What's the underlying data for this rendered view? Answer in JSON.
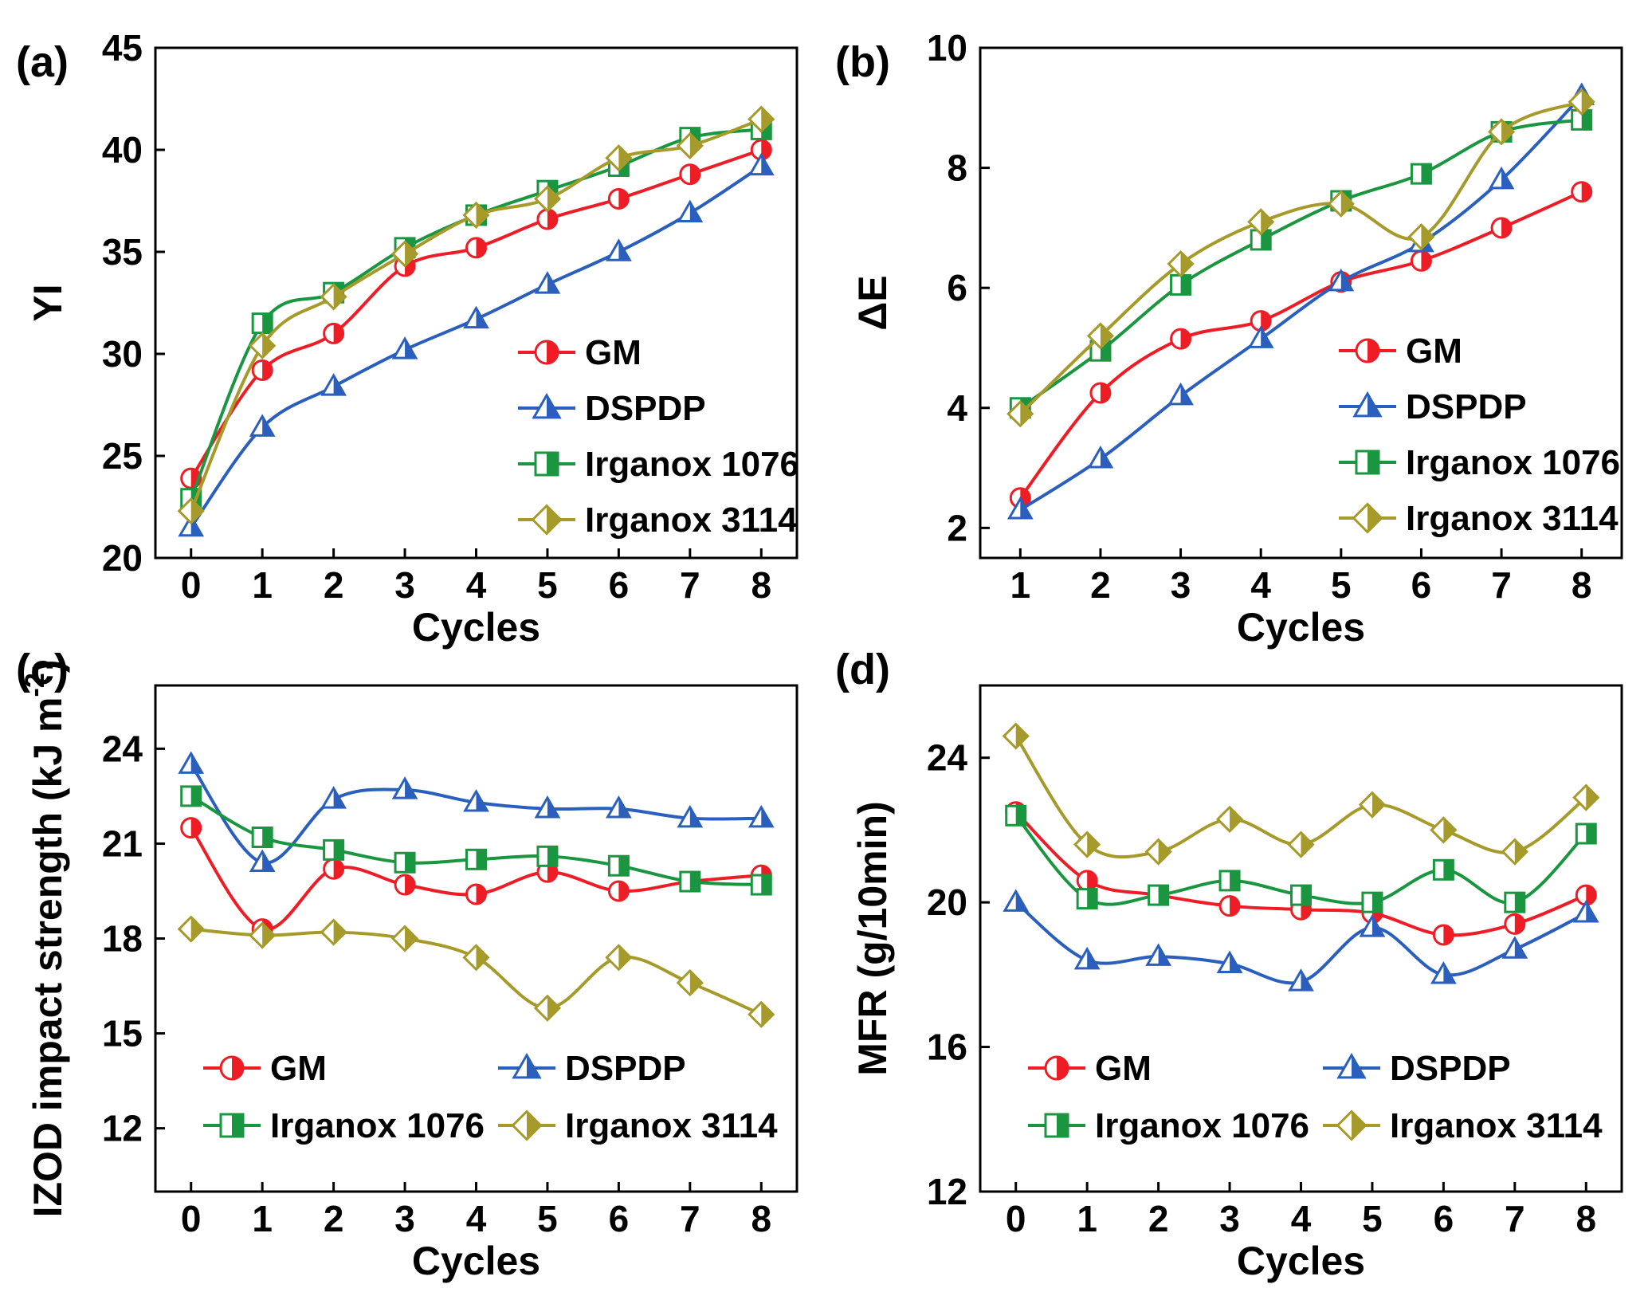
{
  "chart_data": [
    {
      "panel": "(a)",
      "type": "line",
      "xlabel": "Cycles",
      "ylabel": "YI",
      "x": [
        0,
        1,
        2,
        3,
        4,
        5,
        6,
        7,
        8
      ],
      "xlim": [
        -0.5,
        8.5
      ],
      "xticks": [
        0,
        1,
        2,
        3,
        4,
        5,
        6,
        7,
        8
      ],
      "ylim": [
        20,
        45
      ],
      "yticks": [
        20,
        25,
        30,
        35,
        40,
        45
      ],
      "legend": "lower-right",
      "series": [
        {
          "name": "GM",
          "marker": "circle",
          "color": "#ee1c25",
          "values": [
            23.9,
            29.2,
            31.0,
            34.3,
            35.2,
            36.6,
            37.6,
            38.8,
            40.0
          ]
        },
        {
          "name": "DSPDP",
          "marker": "triangle",
          "color": "#2a5fbd",
          "values": [
            21.5,
            26.4,
            28.4,
            30.2,
            31.7,
            33.4,
            35.0,
            36.9,
            39.2
          ]
        },
        {
          "name": "Irganox 1076",
          "marker": "square",
          "color": "#1a9641",
          "values": [
            22.9,
            31.5,
            33.0,
            35.2,
            36.8,
            38.0,
            39.2,
            40.6,
            41.0
          ]
        },
        {
          "name": "Irganox 3114",
          "marker": "diamond",
          "color": "#a59a2a",
          "values": [
            22.3,
            30.4,
            32.8,
            34.9,
            36.8,
            37.6,
            39.6,
            40.2,
            41.5
          ]
        }
      ]
    },
    {
      "panel": "(b)",
      "type": "line",
      "xlabel": "Cycles",
      "ylabel": "ΔE",
      "x": [
        1,
        2,
        3,
        4,
        5,
        6,
        7,
        8
      ],
      "xlim": [
        0.5,
        8.5
      ],
      "xticks": [
        1,
        2,
        3,
        4,
        5,
        6,
        7,
        8
      ],
      "ylim": [
        1.5,
        10
      ],
      "yticks": [
        2,
        4,
        6,
        8,
        10
      ],
      "legend": "lower-right",
      "series": [
        {
          "name": "GM",
          "marker": "circle",
          "color": "#ee1c25",
          "values": [
            2.5,
            4.25,
            5.15,
            5.45,
            6.1,
            6.45,
            7.0,
            7.6
          ]
        },
        {
          "name": "DSPDP",
          "marker": "triangle",
          "color": "#2a5fbd",
          "values": [
            2.3,
            3.15,
            4.2,
            5.15,
            6.1,
            6.75,
            7.8,
            9.2
          ]
        },
        {
          "name": "Irganox 1076",
          "marker": "square",
          "color": "#1a9641",
          "values": [
            4.0,
            4.95,
            6.05,
            6.8,
            7.45,
            7.9,
            8.6,
            8.8
          ]
        },
        {
          "name": "Irganox 3114",
          "marker": "diamond",
          "color": "#a59a2a",
          "values": [
            3.9,
            5.2,
            6.4,
            7.1,
            7.4,
            6.85,
            8.6,
            9.1
          ]
        }
      ]
    },
    {
      "panel": "(c)",
      "type": "line",
      "xlabel": "Cycles",
      "ylabel": "IZOD impact strength (kJ m",
      "ylabel_superscript": "-2",
      "ylabel_suffix": ")",
      "x": [
        0,
        1,
        2,
        3,
        4,
        5,
        6,
        7,
        8
      ],
      "xlim": [
        -0.5,
        8.5
      ],
      "xticks": [
        0,
        1,
        2,
        3,
        4,
        5,
        6,
        7,
        8
      ],
      "ylim": [
        10,
        26
      ],
      "yticks": [
        12,
        15,
        18,
        21,
        24
      ],
      "legend": "bottom",
      "series": [
        {
          "name": "GM",
          "marker": "circle",
          "color": "#ee1c25",
          "values": [
            21.5,
            18.3,
            20.2,
            19.7,
            19.4,
            20.1,
            19.5,
            19.8,
            20.0
          ]
        },
        {
          "name": "DSPDP",
          "marker": "triangle",
          "color": "#2a5fbd",
          "values": [
            23.5,
            20.4,
            22.4,
            22.7,
            22.3,
            22.1,
            22.1,
            21.8,
            21.8
          ]
        },
        {
          "name": "Irganox 1076",
          "marker": "square",
          "color": "#1a9641",
          "values": [
            22.5,
            21.2,
            20.8,
            20.4,
            20.5,
            20.6,
            20.3,
            19.8,
            19.7
          ]
        },
        {
          "name": "Irganox 3114",
          "marker": "diamond",
          "color": "#a59a2a",
          "values": [
            18.3,
            18.1,
            18.2,
            18.0,
            17.4,
            15.8,
            17.4,
            16.6,
            15.6
          ]
        }
      ]
    },
    {
      "panel": "(d)",
      "type": "line",
      "xlabel": "Cycles",
      "ylabel": "MFR (g/10min)",
      "x": [
        0,
        1,
        2,
        3,
        4,
        5,
        6,
        7,
        8
      ],
      "xlim": [
        -0.5,
        8.5
      ],
      "xticks": [
        0,
        1,
        2,
        3,
        4,
        5,
        6,
        7,
        8
      ],
      "ylim": [
        12,
        26
      ],
      "yticks": [
        12,
        16,
        20,
        24
      ],
      "legend": "bottom",
      "series": [
        {
          "name": "GM",
          "marker": "circle",
          "color": "#ee1c25",
          "values": [
            22.5,
            20.6,
            20.2,
            19.9,
            19.8,
            19.7,
            19.1,
            19.4,
            20.2
          ]
        },
        {
          "name": "DSPDP",
          "marker": "triangle",
          "color": "#2a5fbd",
          "values": [
            20.0,
            18.4,
            18.5,
            18.3,
            17.8,
            19.3,
            18.0,
            18.7,
            19.7
          ]
        },
        {
          "name": "Irganox 1076",
          "marker": "square",
          "color": "#1a9641",
          "values": [
            22.4,
            20.1,
            20.2,
            20.6,
            20.2,
            20.0,
            20.9,
            20.0,
            21.9
          ]
        },
        {
          "name": "Irganox 3114",
          "marker": "diamond",
          "color": "#a59a2a",
          "values": [
            24.6,
            21.6,
            21.4,
            22.3,
            21.6,
            22.7,
            22.0,
            21.4,
            22.9
          ]
        }
      ]
    }
  ]
}
